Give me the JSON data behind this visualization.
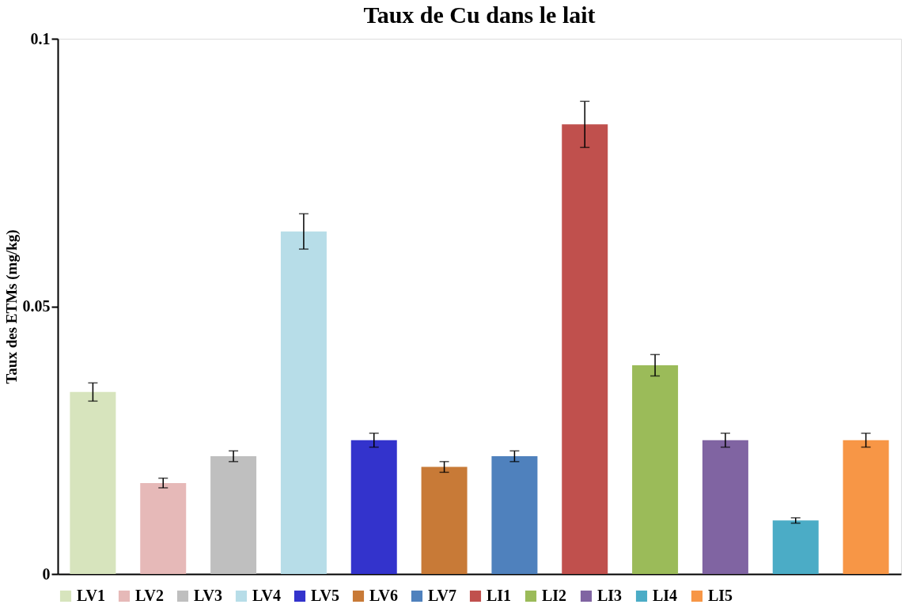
{
  "chart_data": {
    "type": "bar",
    "title": "Taux de Cu dans le lait",
    "ylabel": "Taux des ETMs (mg/kg)",
    "categories": [
      null,
      null,
      null,
      null,
      null,
      null,
      null,
      null,
      null,
      null,
      null,
      null
    ],
    "series": [
      {
        "name": "LV1",
        "color": "#d7e4bd",
        "values": [
          0.034,
          null,
          null,
          null,
          null,
          null,
          null,
          null,
          null,
          null,
          null,
          null
        ],
        "errors": [
          0.0017,
          null,
          null,
          null,
          null,
          null,
          null,
          null,
          null,
          null,
          null,
          null
        ]
      },
      {
        "name": "LV2",
        "color": "#e6b9b8",
        "values": [
          null,
          0.017,
          null,
          null,
          null,
          null,
          null,
          null,
          null,
          null,
          null,
          null
        ],
        "errors": [
          null,
          0.0009,
          null,
          null,
          null,
          null,
          null,
          null,
          null,
          null,
          null,
          null
        ]
      },
      {
        "name": "LV3",
        "color": "#bfbfbf",
        "values": [
          null,
          null,
          0.022,
          null,
          null,
          null,
          null,
          null,
          null,
          null,
          null,
          null
        ],
        "errors": [
          null,
          null,
          0.001,
          null,
          null,
          null,
          null,
          null,
          null,
          null,
          null,
          null
        ]
      },
      {
        "name": "LV4",
        "color": "#b7dde8",
        "values": [
          null,
          null,
          null,
          0.064,
          null,
          null,
          null,
          null,
          null,
          null,
          null,
          null
        ],
        "errors": [
          null,
          null,
          null,
          0.0033,
          null,
          null,
          null,
          null,
          null,
          null,
          null,
          null
        ]
      },
      {
        "name": "LV5",
        "color": "#3333cc",
        "values": [
          null,
          null,
          null,
          null,
          0.025,
          null,
          null,
          null,
          null,
          null,
          null,
          null
        ],
        "errors": [
          null,
          null,
          null,
          null,
          0.0013,
          null,
          null,
          null,
          null,
          null,
          null,
          null
        ]
      },
      {
        "name": "LV6",
        "color": "#c87a37",
        "values": [
          null,
          null,
          null,
          null,
          null,
          0.02,
          null,
          null,
          null,
          null,
          null,
          null
        ],
        "errors": [
          null,
          null,
          null,
          null,
          null,
          0.001,
          null,
          null,
          null,
          null,
          null,
          null
        ]
      },
      {
        "name": "LV7",
        "color": "#4f81bd",
        "values": [
          null,
          null,
          null,
          null,
          null,
          null,
          0.022,
          null,
          null,
          null,
          null,
          null
        ],
        "errors": [
          null,
          null,
          null,
          null,
          null,
          null,
          0.001,
          null,
          null,
          null,
          null,
          null
        ]
      },
      {
        "name": "LI1",
        "color": "#c0504d",
        "values": [
          null,
          null,
          null,
          null,
          null,
          null,
          null,
          0.084,
          null,
          null,
          null,
          null
        ],
        "errors": [
          null,
          null,
          null,
          null,
          null,
          null,
          null,
          0.0043,
          null,
          null,
          null,
          null
        ]
      },
      {
        "name": "LI2",
        "color": "#9bbb59",
        "values": [
          null,
          null,
          null,
          null,
          null,
          null,
          null,
          null,
          0.039,
          null,
          null,
          null
        ],
        "errors": [
          null,
          null,
          null,
          null,
          null,
          null,
          null,
          null,
          0.002,
          null,
          null,
          null
        ]
      },
      {
        "name": "LI3",
        "color": "#8064a2",
        "values": [
          null,
          null,
          null,
          null,
          null,
          null,
          null,
          null,
          null,
          0.025,
          null,
          null
        ],
        "errors": [
          null,
          null,
          null,
          null,
          null,
          null,
          null,
          null,
          null,
          0.0013,
          null,
          null
        ]
      },
      {
        "name": "LI4",
        "color": "#4bacc6",
        "values": [
          null,
          null,
          null,
          null,
          null,
          null,
          null,
          null,
          null,
          null,
          0.01,
          null
        ],
        "errors": [
          null,
          null,
          null,
          null,
          null,
          null,
          null,
          null,
          null,
          null,
          0.0005,
          null
        ]
      },
      {
        "name": "LI5",
        "color": "#f79646",
        "values": [
          null,
          null,
          null,
          null,
          null,
          null,
          null,
          null,
          null,
          null,
          null,
          0.025
        ],
        "errors": [
          null,
          null,
          null,
          null,
          null,
          null,
          null,
          null,
          null,
          null,
          null,
          0.0013
        ]
      }
    ],
    "ylim": [
      0,
      0.1
    ],
    "yticks": [
      0,
      0.05,
      0.1
    ],
    "grid": false,
    "legend": "bottom",
    "tick_labels": "y"
  }
}
